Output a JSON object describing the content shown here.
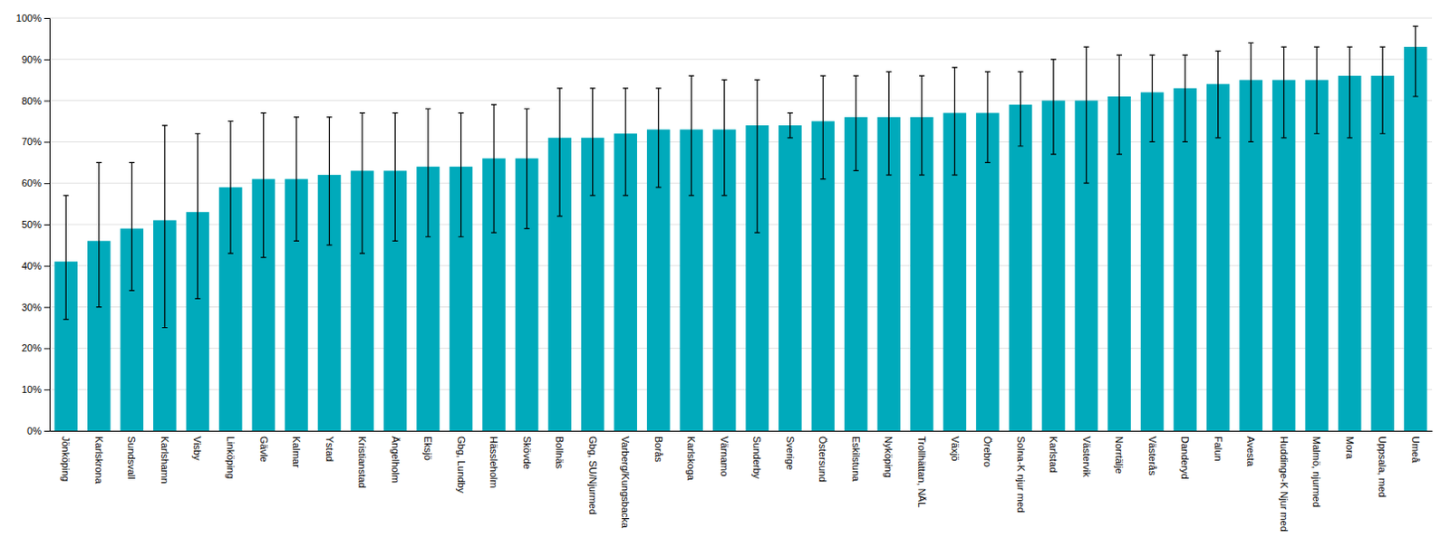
{
  "chart_data": {
    "type": "bar",
    "categories": [
      "Jönköping",
      "Karlskrona",
      "Sundsvall",
      "Karlshamn",
      "Visby",
      "Linköping",
      "Gävle",
      "Kalmar",
      "Ystad",
      "Kristianstad",
      "Ängelholm",
      "Eksjö",
      "Gbg, Lundby",
      "Hässleholm",
      "Skövde",
      "Bollnäs",
      "Gbg, SU/Njurmed",
      "Varberg/Kungsbacka",
      "Borås",
      "Karlskoga",
      "Värnamo",
      "Sunderby",
      "Sverige",
      "Östersund",
      "Eskilstuna",
      "Nyköping",
      "Trollhättan, NÄL",
      "Växjö",
      "Örebro",
      "Solna-K njur med",
      "Karlstad",
      "Västervik",
      "Norrtälje",
      "Västerås",
      "Danderyd",
      "Falun",
      "Avesta",
      "Huddinge-K Njur med",
      "Malmö, njurmed",
      "Mora",
      "Uppsala, med",
      "Umeå"
    ],
    "values": [
      41,
      46,
      49,
      51,
      53,
      59,
      61,
      61,
      62,
      63,
      63,
      64,
      64,
      66,
      66,
      71,
      71,
      72,
      73,
      73,
      73,
      74,
      74,
      75,
      76,
      76,
      76,
      77,
      77,
      79,
      80,
      80,
      81,
      82,
      83,
      84,
      85,
      85,
      85,
      86,
      86,
      93
    ],
    "errors_low": [
      14,
      16,
      15,
      26,
      21,
      16,
      19,
      15,
      17,
      20,
      17,
      17,
      17,
      18,
      17,
      19,
      14,
      15,
      14,
      16,
      16,
      26,
      3,
      14,
      13,
      14,
      14,
      15,
      12,
      10,
      13,
      20,
      14,
      12,
      13,
      13,
      15,
      14,
      13,
      15,
      14,
      12
    ],
    "errors_high": [
      16,
      19,
      16,
      23,
      19,
      16,
      16,
      15,
      14,
      14,
      14,
      14,
      13,
      13,
      12,
      12,
      12,
      11,
      10,
      13,
      12,
      11,
      3,
      11,
      10,
      11,
      10,
      11,
      10,
      8,
      10,
      13,
      10,
      9,
      8,
      8,
      9,
      8,
      8,
      7,
      7,
      5
    ],
    "color": "#00AABB",
    "ylim": [
      0,
      100
    ],
    "yticks": [
      {
        "value": 0,
        "label": "0%"
      },
      {
        "value": 10,
        "label": "10%"
      },
      {
        "value": 20,
        "label": "20%"
      },
      {
        "value": 30,
        "label": "30%"
      },
      {
        "value": 40,
        "label": "40%"
      },
      {
        "value": 50,
        "label": "50%"
      },
      {
        "value": 60,
        "label": "60%"
      },
      {
        "value": 70,
        "label": "70%"
      },
      {
        "value": 80,
        "label": "80%"
      },
      {
        "value": 90,
        "label": "90%"
      },
      {
        "value": 100,
        "label": "100%"
      }
    ],
    "grid": true
  }
}
